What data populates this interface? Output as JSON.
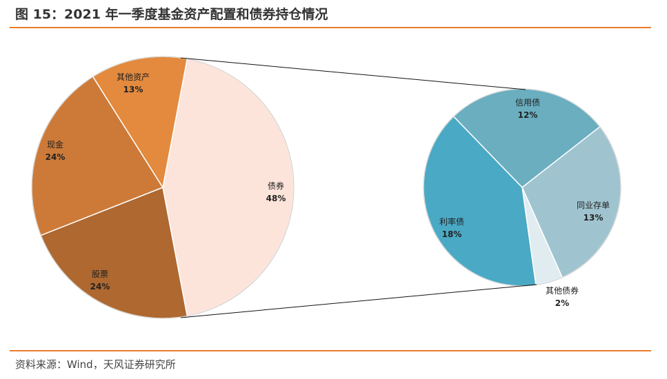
{
  "title": "图 15：2021 年一季度基金资产配置和债券持仓情况",
  "source": "资料来源：Wind，天风证券研究所",
  "colors": {
    "accent": "#ea7c2b"
  },
  "chart_data": [
    {
      "type": "pie",
      "name": "main",
      "categories": [
        "债券",
        "股票",
        "现金",
        "其他资产"
      ],
      "values": [
        48,
        24,
        24,
        13
      ],
      "labels": [
        "48%",
        "24%",
        "24%",
        "13%"
      ],
      "colors": [
        "#fce4da",
        "#ae6830",
        "#cd7a38",
        "#e38a3e"
      ]
    },
    {
      "type": "pie",
      "name": "bond-breakdown",
      "categories": [
        "信用债",
        "同业存单",
        "其他债券",
        "利率债"
      ],
      "values": [
        12,
        13,
        2,
        18
      ],
      "labels": [
        "12%",
        "13%",
        "2%",
        "18%"
      ],
      "colors": [
        "#6aaec0",
        "#9fc4d0",
        "#e0ecf0",
        "#4aa9c4"
      ]
    }
  ]
}
